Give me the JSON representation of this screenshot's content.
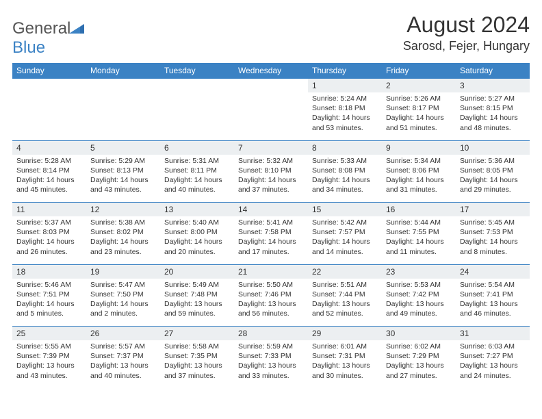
{
  "logo": {
    "word1": "General",
    "word2": "Blue"
  },
  "title": "August 2024",
  "location": "Sarosd, Fejer, Hungary",
  "colors": {
    "header_bg": "#3b82c4",
    "header_text": "#ffffff",
    "daynum_bg": "#eceff1",
    "border": "#3b82c4",
    "text": "#333333",
    "logo_gray": "#555555",
    "logo_blue": "#3b82c4"
  },
  "weekdays": [
    "Sunday",
    "Monday",
    "Tuesday",
    "Wednesday",
    "Thursday",
    "Friday",
    "Saturday"
  ],
  "weeks": [
    [
      null,
      null,
      null,
      null,
      {
        "d": "1",
        "sr": "5:24 AM",
        "ss": "8:18 PM",
        "dl": "14 hours and 53 minutes."
      },
      {
        "d": "2",
        "sr": "5:26 AM",
        "ss": "8:17 PM",
        "dl": "14 hours and 51 minutes."
      },
      {
        "d": "3",
        "sr": "5:27 AM",
        "ss": "8:15 PM",
        "dl": "14 hours and 48 minutes."
      }
    ],
    [
      {
        "d": "4",
        "sr": "5:28 AM",
        "ss": "8:14 PM",
        "dl": "14 hours and 45 minutes."
      },
      {
        "d": "5",
        "sr": "5:29 AM",
        "ss": "8:13 PM",
        "dl": "14 hours and 43 minutes."
      },
      {
        "d": "6",
        "sr": "5:31 AM",
        "ss": "8:11 PM",
        "dl": "14 hours and 40 minutes."
      },
      {
        "d": "7",
        "sr": "5:32 AM",
        "ss": "8:10 PM",
        "dl": "14 hours and 37 minutes."
      },
      {
        "d": "8",
        "sr": "5:33 AM",
        "ss": "8:08 PM",
        "dl": "14 hours and 34 minutes."
      },
      {
        "d": "9",
        "sr": "5:34 AM",
        "ss": "8:06 PM",
        "dl": "14 hours and 31 minutes."
      },
      {
        "d": "10",
        "sr": "5:36 AM",
        "ss": "8:05 PM",
        "dl": "14 hours and 29 minutes."
      }
    ],
    [
      {
        "d": "11",
        "sr": "5:37 AM",
        "ss": "8:03 PM",
        "dl": "14 hours and 26 minutes."
      },
      {
        "d": "12",
        "sr": "5:38 AM",
        "ss": "8:02 PM",
        "dl": "14 hours and 23 minutes."
      },
      {
        "d": "13",
        "sr": "5:40 AM",
        "ss": "8:00 PM",
        "dl": "14 hours and 20 minutes."
      },
      {
        "d": "14",
        "sr": "5:41 AM",
        "ss": "7:58 PM",
        "dl": "14 hours and 17 minutes."
      },
      {
        "d": "15",
        "sr": "5:42 AM",
        "ss": "7:57 PM",
        "dl": "14 hours and 14 minutes."
      },
      {
        "d": "16",
        "sr": "5:44 AM",
        "ss": "7:55 PM",
        "dl": "14 hours and 11 minutes."
      },
      {
        "d": "17",
        "sr": "5:45 AM",
        "ss": "7:53 PM",
        "dl": "14 hours and 8 minutes."
      }
    ],
    [
      {
        "d": "18",
        "sr": "5:46 AM",
        "ss": "7:51 PM",
        "dl": "14 hours and 5 minutes."
      },
      {
        "d": "19",
        "sr": "5:47 AM",
        "ss": "7:50 PM",
        "dl": "14 hours and 2 minutes."
      },
      {
        "d": "20",
        "sr": "5:49 AM",
        "ss": "7:48 PM",
        "dl": "13 hours and 59 minutes."
      },
      {
        "d": "21",
        "sr": "5:50 AM",
        "ss": "7:46 PM",
        "dl": "13 hours and 56 minutes."
      },
      {
        "d": "22",
        "sr": "5:51 AM",
        "ss": "7:44 PM",
        "dl": "13 hours and 52 minutes."
      },
      {
        "d": "23",
        "sr": "5:53 AM",
        "ss": "7:42 PM",
        "dl": "13 hours and 49 minutes."
      },
      {
        "d": "24",
        "sr": "5:54 AM",
        "ss": "7:41 PM",
        "dl": "13 hours and 46 minutes."
      }
    ],
    [
      {
        "d": "25",
        "sr": "5:55 AM",
        "ss": "7:39 PM",
        "dl": "13 hours and 43 minutes."
      },
      {
        "d": "26",
        "sr": "5:57 AM",
        "ss": "7:37 PM",
        "dl": "13 hours and 40 minutes."
      },
      {
        "d": "27",
        "sr": "5:58 AM",
        "ss": "7:35 PM",
        "dl": "13 hours and 37 minutes."
      },
      {
        "d": "28",
        "sr": "5:59 AM",
        "ss": "7:33 PM",
        "dl": "13 hours and 33 minutes."
      },
      {
        "d": "29",
        "sr": "6:01 AM",
        "ss": "7:31 PM",
        "dl": "13 hours and 30 minutes."
      },
      {
        "d": "30",
        "sr": "6:02 AM",
        "ss": "7:29 PM",
        "dl": "13 hours and 27 minutes."
      },
      {
        "d": "31",
        "sr": "6:03 AM",
        "ss": "7:27 PM",
        "dl": "13 hours and 24 minutes."
      }
    ]
  ],
  "labels": {
    "sunrise": "Sunrise: ",
    "sunset": "Sunset: ",
    "daylight": "Daylight: "
  }
}
